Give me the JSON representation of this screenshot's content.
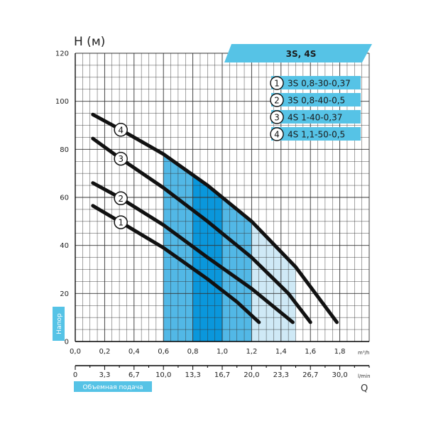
{
  "chart_data": {
    "type": "line",
    "title": "3S, 4S",
    "ylabel": "H (м)",
    "y_axis_tag": "Напор",
    "x_axis_tag": "Объемная подача",
    "x_unit_top": "m³/h",
    "x_unit_bottom": "l/min",
    "x_symbol": "Q",
    "xlim": [
      0,
      2.0
    ],
    "ylim": [
      0,
      120
    ],
    "grid": true,
    "legend_placement": "top-right",
    "x_ticks_top": [
      "0,0",
      "0,2",
      "0,4",
      "0,6",
      "0,8",
      "1,0",
      "1,2",
      "1,4",
      "1,6",
      "1,8"
    ],
    "x_ticks_top_values": [
      0,
      0.2,
      0.4,
      0.6,
      0.8,
      1.0,
      1.2,
      1.4,
      1.6,
      1.8
    ],
    "x_ticks_bottom": [
      "0",
      "3,3",
      "6,7",
      "10,0",
      "13,3",
      "16,7",
      "20,0",
      "23,3",
      "26,7",
      "30,0"
    ],
    "x_ticks_bottom_values": [
      0,
      0.2,
      0.4,
      0.6,
      0.8,
      1.0,
      1.2,
      1.4,
      1.6,
      1.8
    ],
    "y_ticks": [
      "0",
      "20",
      "40",
      "60",
      "80",
      "100",
      "120"
    ],
    "y_ticks_values": [
      0,
      20,
      40,
      60,
      80,
      100,
      120
    ],
    "series": [
      {
        "name": "3S 0,8-30-0,37",
        "marker": "1",
        "x": [
          0.12,
          0.3,
          0.6,
          0.9,
          1.1,
          1.25
        ],
        "y": [
          56.5,
          50,
          39,
          26,
          16.5,
          8
        ]
      },
      {
        "name": "3S 0,8-40-0,5",
        "marker": "2",
        "x": [
          0.12,
          0.3,
          0.6,
          0.9,
          1.2,
          1.48
        ],
        "y": [
          66,
          60,
          48.5,
          35,
          22,
          8
        ]
      },
      {
        "name": "4S 1-40-0,37",
        "marker": "3",
        "x": [
          0.12,
          0.3,
          0.6,
          0.9,
          1.2,
          1.45,
          1.6
        ],
        "y": [
          84.5,
          76.5,
          64,
          50,
          35,
          20,
          8
        ]
      },
      {
        "name": "4S 1,1-50-0,5",
        "marker": "4",
        "x": [
          0.12,
          0.3,
          0.6,
          0.9,
          1.2,
          1.5,
          1.78
        ],
        "y": [
          94.5,
          88.5,
          78,
          65,
          50,
          31,
          8
        ]
      }
    ],
    "shaded_regions": [
      {
        "x": [
          0.6,
          1.5
        ],
        "color": "#cfe9f6"
      },
      {
        "x": [
          0.6,
          1.2
        ],
        "color": "#52b8e6"
      },
      {
        "x": [
          0.8,
          1.0
        ],
        "color": "#0a97dc"
      }
    ],
    "colors": {
      "curve": "#111111",
      "accent": "#56c3e6",
      "grid": "#333333"
    }
  }
}
